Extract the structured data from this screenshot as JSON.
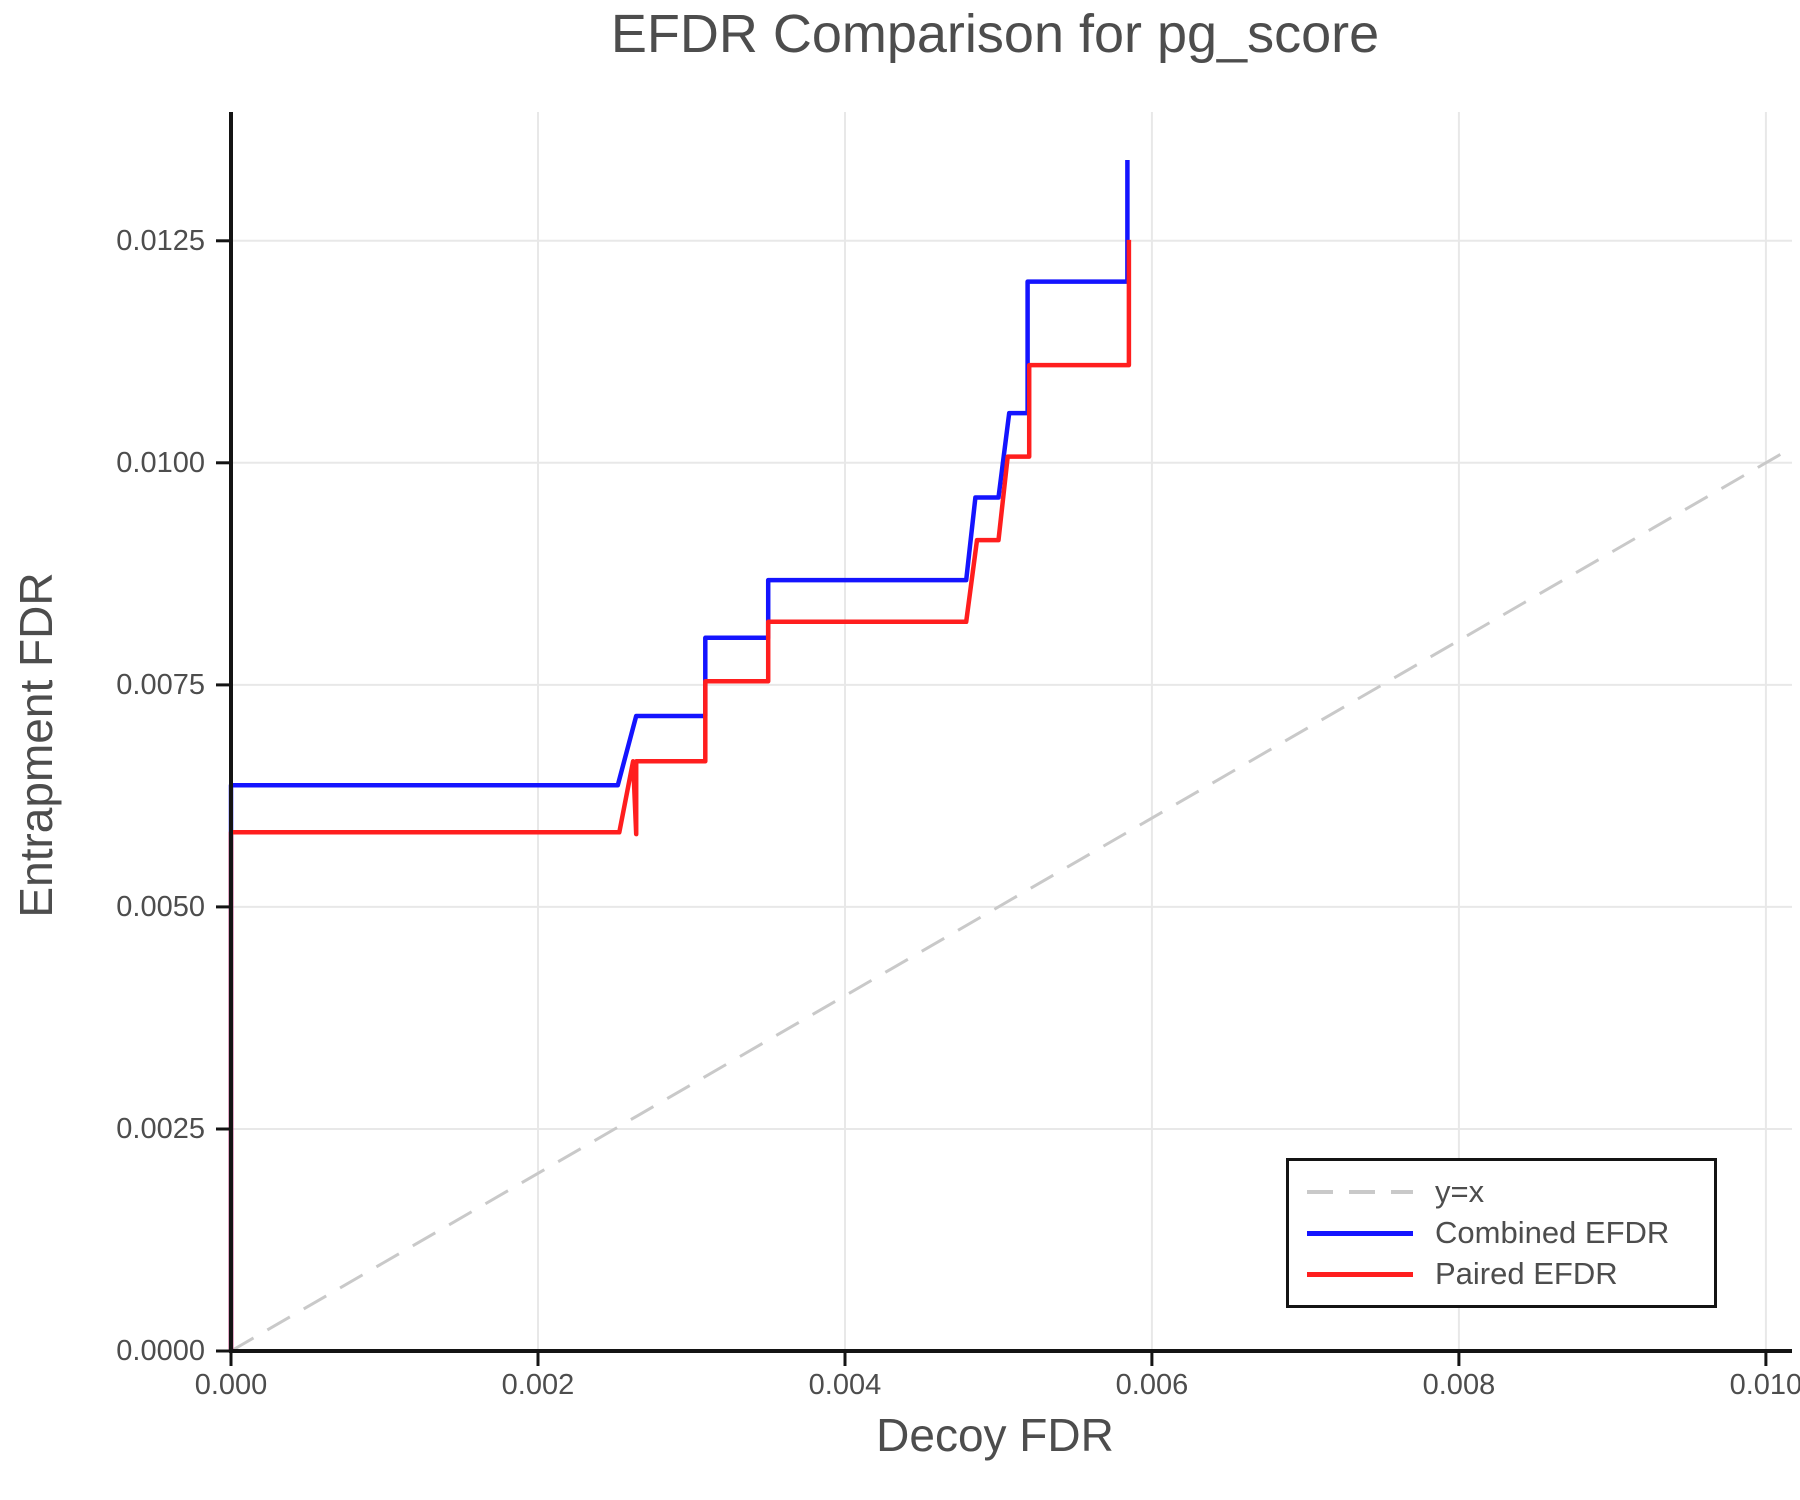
{
  "chart_data": {
    "type": "line",
    "title": "EFDR Comparison for pg_score",
    "xlabel": "Decoy FDR",
    "ylabel": "Entrapment FDR",
    "xlim": [
      0,
      0.01017
    ],
    "ylim": [
      0,
      0.01395
    ],
    "grid": true,
    "legend_position": "lower right",
    "x_ticks": {
      "values": [
        0.0,
        0.002,
        0.004,
        0.006,
        0.008,
        0.01
      ],
      "labels": [
        "0.000",
        "0.002",
        "0.004",
        "0.006",
        "0.008",
        "0.010"
      ]
    },
    "y_ticks": {
      "values": [
        0.0,
        0.0025,
        0.005,
        0.0075,
        0.01,
        0.0125
      ],
      "labels": [
        "0.0000",
        "0.0025",
        "0.0050",
        "0.0075",
        "0.0100",
        "0.0125"
      ]
    },
    "style": {
      "background": "#FFFFFF",
      "grid_color": "#E8E8E8",
      "axis_color": "#141414",
      "text_color": "#4D4D4D"
    },
    "series": [
      {
        "name": "y=x",
        "color": "#C9C9C9",
        "style": "dashed",
        "width": 3,
        "points": [
          [
            0,
            0
          ],
          [
            0.01017,
            0.01017
          ]
        ]
      },
      {
        "name": "Combined EFDR",
        "color": "#1414FF",
        "style": "solid",
        "width": 4.5,
        "points": [
          [
            0.0,
            0.0
          ],
          [
            0.0,
            0.00637
          ],
          [
            0.00252,
            0.00637
          ],
          [
            0.00264,
            0.00715
          ],
          [
            0.00309,
            0.00715
          ],
          [
            0.00309,
            0.00803
          ],
          [
            0.0035,
            0.00803
          ],
          [
            0.0035,
            0.00868
          ],
          [
            0.00479,
            0.00868
          ],
          [
            0.00485,
            0.00961
          ],
          [
            0.005,
            0.00961
          ],
          [
            0.00507,
            0.01056
          ],
          [
            0.00519,
            0.01056
          ],
          [
            0.00519,
            0.01204
          ],
          [
            0.00584,
            0.01204
          ],
          [
            0.00584,
            0.01341
          ]
        ]
      },
      {
        "name": "Paired EFDR",
        "color": "#FF1E1E",
        "style": "solid",
        "width": 4.5,
        "points": [
          [
            0.0,
            0.0
          ],
          [
            0.0,
            0.00584
          ],
          [
            0.00253,
            0.00584
          ],
          [
            0.00262,
            0.00664
          ],
          [
            0.00264,
            0.00582
          ],
          [
            0.00264,
            0.00664
          ],
          [
            0.00309,
            0.00664
          ],
          [
            0.00309,
            0.00754
          ],
          [
            0.0035,
            0.00754
          ],
          [
            0.0035,
            0.00821
          ],
          [
            0.00479,
            0.00821
          ],
          [
            0.00486,
            0.00913
          ],
          [
            0.005,
            0.00913
          ],
          [
            0.00506,
            0.01007
          ],
          [
            0.0052,
            0.01007
          ],
          [
            0.0052,
            0.0111
          ],
          [
            0.00585,
            0.0111
          ],
          [
            0.00585,
            0.01251
          ]
        ]
      }
    ]
  }
}
